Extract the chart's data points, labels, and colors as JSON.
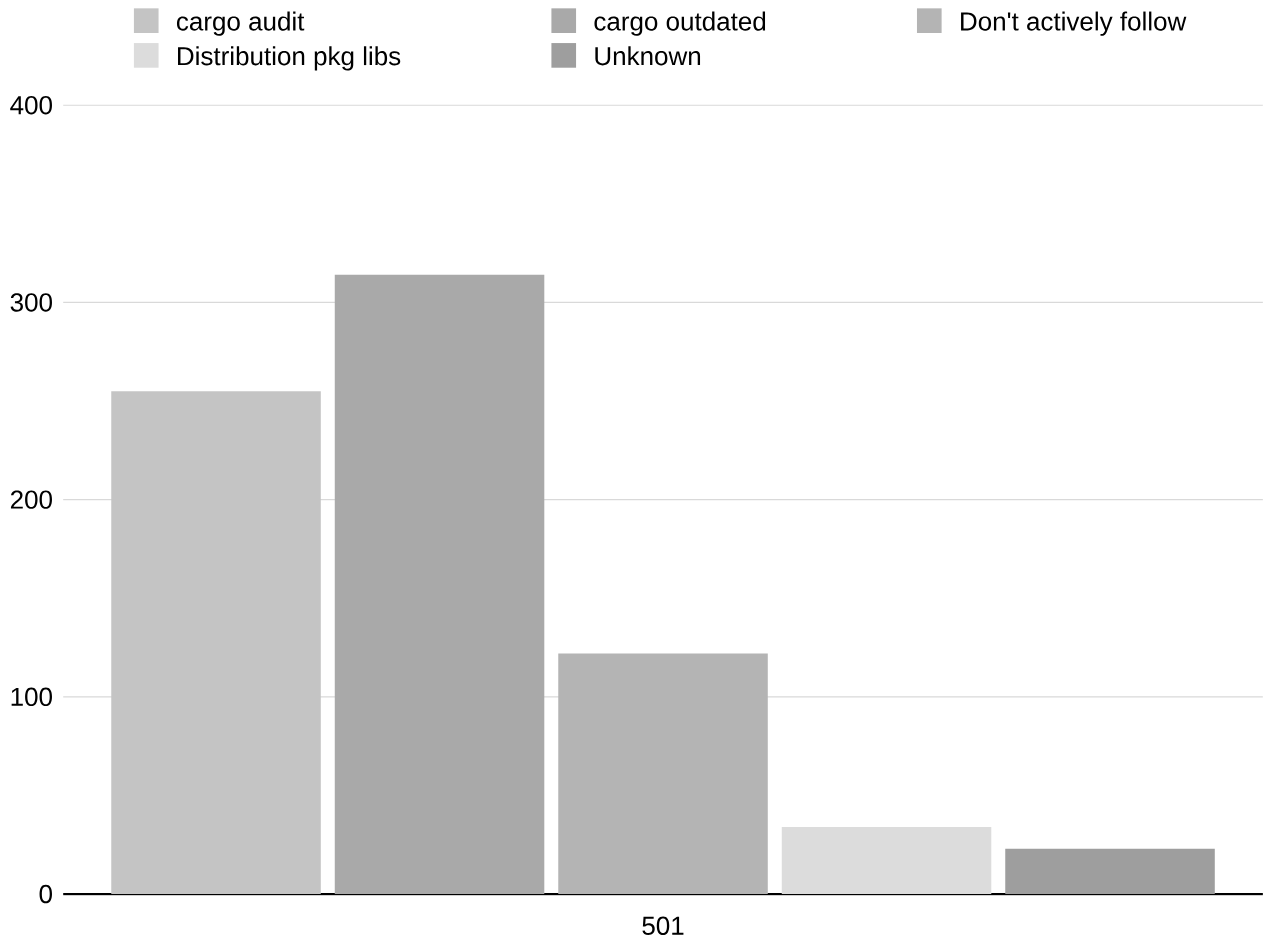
{
  "chart_data": {
    "type": "bar",
    "categories": [
      "501"
    ],
    "series": [
      {
        "name": "cargo audit",
        "color": "#c4c4c4",
        "values": [
          255
        ]
      },
      {
        "name": "cargo outdated",
        "color": "#a9a9a9",
        "values": [
          314
        ]
      },
      {
        "name": "Don't actively follow",
        "color": "#b4b4b4",
        "values": [
          122
        ]
      },
      {
        "name": "Distribution pkg libs",
        "color": "#dcdcdc",
        "values": [
          34
        ]
      },
      {
        "name": "Unknown",
        "color": "#9e9e9e",
        "values": [
          23
        ]
      }
    ],
    "ylim": [
      0,
      400
    ],
    "yticks": [
      0,
      100,
      200,
      300,
      400
    ],
    "grid": "y",
    "legend": "top"
  }
}
